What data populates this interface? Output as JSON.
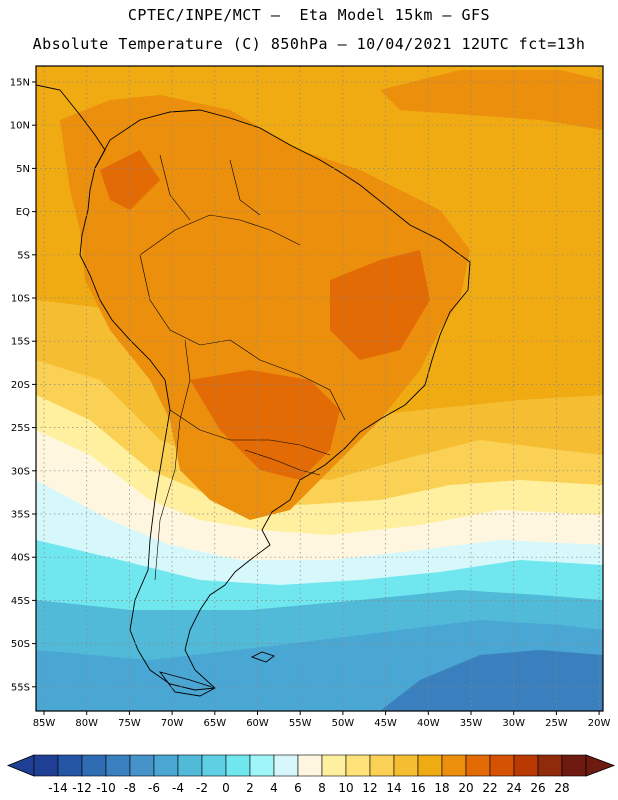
{
  "title_line1": "CPTEC/INPE/MCT –  Eta Model 15km – GFS",
  "title_line2": "Absolute Temperature (C) 850hPa – 10/04/2021 12UTC fct=13h",
  "lat_labels": [
    "15N",
    "10N",
    "5N",
    "EQ",
    "5S",
    "10S",
    "15S",
    "20S",
    "25S",
    "30S",
    "35S",
    "40S",
    "45S",
    "50S",
    "55S"
  ],
  "lon_labels": [
    "85W",
    "80W",
    "75W",
    "70W",
    "65W",
    "60W",
    "55W",
    "50W",
    "45W",
    "40W",
    "35W",
    "30W",
    "25W",
    "20W"
  ],
  "colorbar": {
    "labels": [
      "-14",
      "-12",
      "-10",
      "-8",
      "-6",
      "-4",
      "-2",
      "0",
      "2",
      "4",
      "6",
      "8",
      "10",
      "12",
      "14",
      "16",
      "18",
      "20",
      "22",
      "24",
      "26",
      "28"
    ],
    "colors": [
      "#1f3f95",
      "#2556a5",
      "#2f6cb3",
      "#3a7fbe",
      "#4593c8",
      "#4aa6d3",
      "#52bad9",
      "#5fd0e3",
      "#70e6ef",
      "#9ff5f8",
      "#d6f8fb",
      "#fff6e0",
      "#fff0a0",
      "#ffe37a",
      "#fbd155",
      "#f5be32",
      "#f0aa12",
      "#ec8f0c",
      "#e36b06",
      "#d65203",
      "#b83a02",
      "#8f2a0a",
      "#6e1a10"
    ]
  },
  "field_colors": {
    "ocean_tropical": "#f0aa12",
    "warm_land": "#ec8f0c",
    "hot_core": "#e36b06",
    "subtropical": "#f5be32",
    "temperate": "#fbd155",
    "cool": "#fff0a0",
    "cream": "#fff6e0",
    "pale_cyan": "#d6f8fb",
    "cyan": "#70e6ef",
    "blue_light": "#52bad9",
    "blue_mid": "#4aa6d3",
    "blue_dark": "#3a7fbe"
  }
}
